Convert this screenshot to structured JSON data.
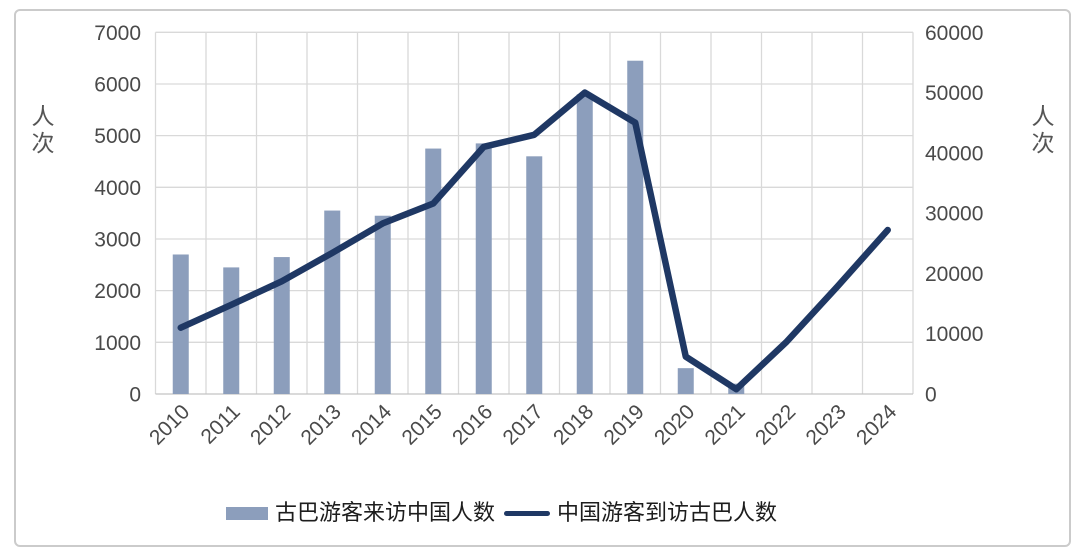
{
  "chart_data": {
    "type": "combo-bar-line",
    "title": "",
    "categories": [
      "2010",
      "2011",
      "2012",
      "2013",
      "2014",
      "2015",
      "2016",
      "2017",
      "2018",
      "2019",
      "2020",
      "2021",
      "2022",
      "2023",
      "2024"
    ],
    "series": [
      {
        "name": "古巴游客来访中国人数",
        "type": "bar",
        "axis": "left",
        "color": "#8C9EBC",
        "values": [
          2700,
          2450,
          2650,
          3550,
          3450,
          4750,
          4850,
          4600,
          5800,
          6450,
          500,
          200,
          null,
          null,
          null
        ]
      },
      {
        "name": "中国游客到访古巴人数",
        "type": "line",
        "axis": "right",
        "color": "#1F3864",
        "values": [
          11000,
          14800,
          18700,
          23400,
          28300,
          31600,
          41000,
          43000,
          50000,
          45000,
          6200,
          800,
          8700,
          17800,
          27200
        ]
      }
    ],
    "left_axis": {
      "title": "人次",
      "min": 0,
      "max": 7000,
      "step": 1000,
      "tick_labels": [
        "0",
        "1000",
        "2000",
        "3000",
        "4000",
        "5000",
        "6000",
        "7000"
      ]
    },
    "right_axis": {
      "title": "人次",
      "min": 0,
      "max": 60000,
      "step": 10000,
      "tick_labels": [
        "0",
        "10000",
        "20000",
        "30000",
        "40000",
        "50000",
        "60000"
      ]
    },
    "grid": true,
    "legend_position": "bottom"
  },
  "legend": {
    "bar_label": "古巴游客来访中国人数",
    "line_label": "中国游客到访古巴人数"
  },
  "colors": {
    "bar": "#8C9EBC",
    "line": "#1F3864",
    "gridline": "#D9D9D9",
    "axis_text": "#4A4A4A",
    "frame_border": "#CBCBCB",
    "background": "#FFFFFF"
  }
}
